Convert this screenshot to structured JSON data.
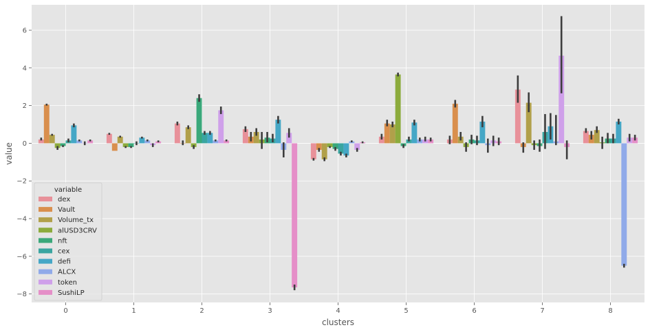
{
  "chart_data": {
    "type": "bar",
    "xlabel": "clusters",
    "ylabel": "value",
    "categories": [
      "0",
      "1",
      "2",
      "3",
      "4",
      "5",
      "6",
      "7",
      "8"
    ],
    "ylim": [
      -8.45,
      7.35
    ],
    "yticks": [
      -8,
      -6,
      -4,
      -2,
      0,
      2,
      4,
      6
    ],
    "ytick_labels": [
      "−8",
      "−6",
      "−4",
      "−2",
      "0",
      "2",
      "4",
      "6"
    ],
    "grid": true,
    "background": "#e5e5e5",
    "legend": {
      "title": "variable",
      "position": "lower-left"
    },
    "series": [
      {
        "name": "dex",
        "color": "#e8919a",
        "values": [
          0.2,
          0.5,
          1.05,
          0.75,
          -0.85,
          0.35,
          0.2,
          2.85,
          0.65
        ],
        "err": [
          [
            0.15,
            0.3
          ],
          [
            0.45,
            0.55
          ],
          [
            0.95,
            1.15
          ],
          [
            0.6,
            0.9
          ],
          [
            -0.92,
            -0.78
          ],
          [
            0.2,
            0.5
          ],
          [
            -0.05,
            0.4
          ],
          [
            2.15,
            3.6
          ],
          [
            0.55,
            0.8
          ]
        ]
      },
      {
        "name": "Vault",
        "color": "#d98f4d",
        "values": [
          2.05,
          -0.4,
          0.0,
          0.35,
          -0.35,
          1.05,
          2.1,
          -0.2,
          0.45
        ],
        "err": [
          [
            2.0,
            2.1
          ],
          [
            -0.4,
            -0.4
          ],
          [
            -0.1,
            0.15
          ],
          [
            0.1,
            0.6
          ],
          [
            -0.45,
            -0.25
          ],
          [
            0.9,
            1.25
          ],
          [
            1.9,
            2.3
          ],
          [
            -0.5,
            0.05
          ],
          [
            0.2,
            0.65
          ]
        ]
      },
      {
        "name": "Volume_tx",
        "color": "#b1a04a",
        "values": [
          0.45,
          0.35,
          0.85,
          0.6,
          -0.85,
          1.0,
          0.35,
          2.15,
          0.7
        ],
        "err": [
          [
            0.4,
            0.5
          ],
          [
            0.3,
            0.4
          ],
          [
            0.75,
            0.95
          ],
          [
            0.4,
            0.8
          ],
          [
            -0.95,
            -0.75
          ],
          [
            0.85,
            1.15
          ],
          [
            0.15,
            0.6
          ],
          [
            1.65,
            2.7
          ],
          [
            0.55,
            0.9
          ]
        ]
      },
      {
        "name": "alUSD3CRV",
        "color": "#8cab3c",
        "values": [
          -0.25,
          -0.2,
          -0.2,
          0.2,
          -0.2,
          3.65,
          -0.2,
          -0.1,
          0.05
        ],
        "err": [
          [
            -0.35,
            -0.15
          ],
          [
            -0.25,
            -0.15
          ],
          [
            -0.3,
            -0.1
          ],
          [
            -0.3,
            0.6
          ],
          [
            -0.25,
            -0.15
          ],
          [
            3.55,
            3.75
          ],
          [
            -0.45,
            0.05
          ],
          [
            -0.35,
            0.15
          ],
          [
            -0.3,
            0.35
          ]
        ]
      },
      {
        "name": "nft",
        "color": "#3aa87a",
        "values": [
          -0.15,
          -0.2,
          2.4,
          0.3,
          -0.3,
          -0.15,
          0.2,
          -0.15,
          0.25
        ],
        "err": [
          [
            -0.2,
            -0.1
          ],
          [
            -0.25,
            -0.15
          ],
          [
            2.2,
            2.6
          ],
          [
            0.05,
            0.6
          ],
          [
            -0.4,
            -0.2
          ],
          [
            -0.25,
            -0.05
          ],
          [
            -0.05,
            0.45
          ],
          [
            -0.45,
            0.2
          ],
          [
            0.0,
            0.55
          ]
        ]
      },
      {
        "name": "cex",
        "color": "#3aa5a0",
        "values": [
          0.15,
          0.0,
          0.55,
          0.25,
          -0.55,
          0.2,
          0.15,
          0.6,
          0.25
        ],
        "err": [
          [
            0.05,
            0.25
          ],
          [
            -0.1,
            0.1
          ],
          [
            0.45,
            0.65
          ],
          [
            0.05,
            0.5
          ],
          [
            -0.65,
            -0.45
          ],
          [
            0.1,
            0.35
          ],
          [
            -0.1,
            0.4
          ],
          [
            -0.3,
            1.55
          ],
          [
            0.0,
            0.5
          ]
        ]
      },
      {
        "name": "defi",
        "color": "#45a7c6",
        "values": [
          0.95,
          0.3,
          0.55,
          1.25,
          -0.65,
          1.1,
          1.15,
          0.9,
          1.15
        ],
        "err": [
          [
            0.85,
            1.05
          ],
          [
            0.25,
            0.35
          ],
          [
            0.45,
            0.65
          ],
          [
            1.05,
            1.45
          ],
          [
            -0.75,
            -0.55
          ],
          [
            0.95,
            1.25
          ],
          [
            0.85,
            1.45
          ],
          [
            0.2,
            1.6
          ],
          [
            1.0,
            1.3
          ]
        ]
      },
      {
        "name": "ALCX",
        "color": "#90aae9",
        "values": [
          0.15,
          0.15,
          0.15,
          -0.35,
          0.1,
          0.2,
          -0.1,
          0.1,
          -6.5
        ],
        "err": [
          [
            0.1,
            0.2
          ],
          [
            0.1,
            0.2
          ],
          [
            0.1,
            0.2
          ],
          [
            -0.75,
            0.05
          ],
          [
            0.05,
            0.15
          ],
          [
            0.1,
            0.3
          ],
          [
            -0.5,
            0.25
          ],
          [
            -0.1,
            1.5
          ],
          [
            -6.6,
            -6.4
          ]
        ]
      },
      {
        "name": "token",
        "color": "#cfa0ea",
        "values": [
          0.0,
          -0.1,
          1.75,
          0.55,
          -0.35,
          0.2,
          0.15,
          4.65,
          0.3
        ],
        "err": [
          [
            -0.1,
            0.1
          ],
          [
            -0.2,
            0.0
          ],
          [
            1.55,
            1.95
          ],
          [
            0.3,
            0.8
          ],
          [
            -0.45,
            -0.25
          ],
          [
            0.1,
            0.35
          ],
          [
            -0.15,
            0.4
          ],
          [
            2.65,
            6.75
          ],
          [
            0.1,
            0.5
          ]
        ]
      },
      {
        "name": "SushiLP",
        "color": "#e58fc8",
        "values": [
          0.15,
          0.1,
          0.15,
          -7.65,
          0.05,
          0.2,
          0.1,
          -0.2,
          0.3
        ],
        "err": [
          [
            0.1,
            0.2
          ],
          [
            0.05,
            0.15
          ],
          [
            0.1,
            0.2
          ],
          [
            -7.8,
            -7.5
          ],
          [
            0.0,
            0.1
          ],
          [
            0.1,
            0.3
          ],
          [
            -0.1,
            0.3
          ],
          [
            -0.85,
            0.15
          ],
          [
            0.15,
            0.45
          ]
        ]
      }
    ]
  }
}
